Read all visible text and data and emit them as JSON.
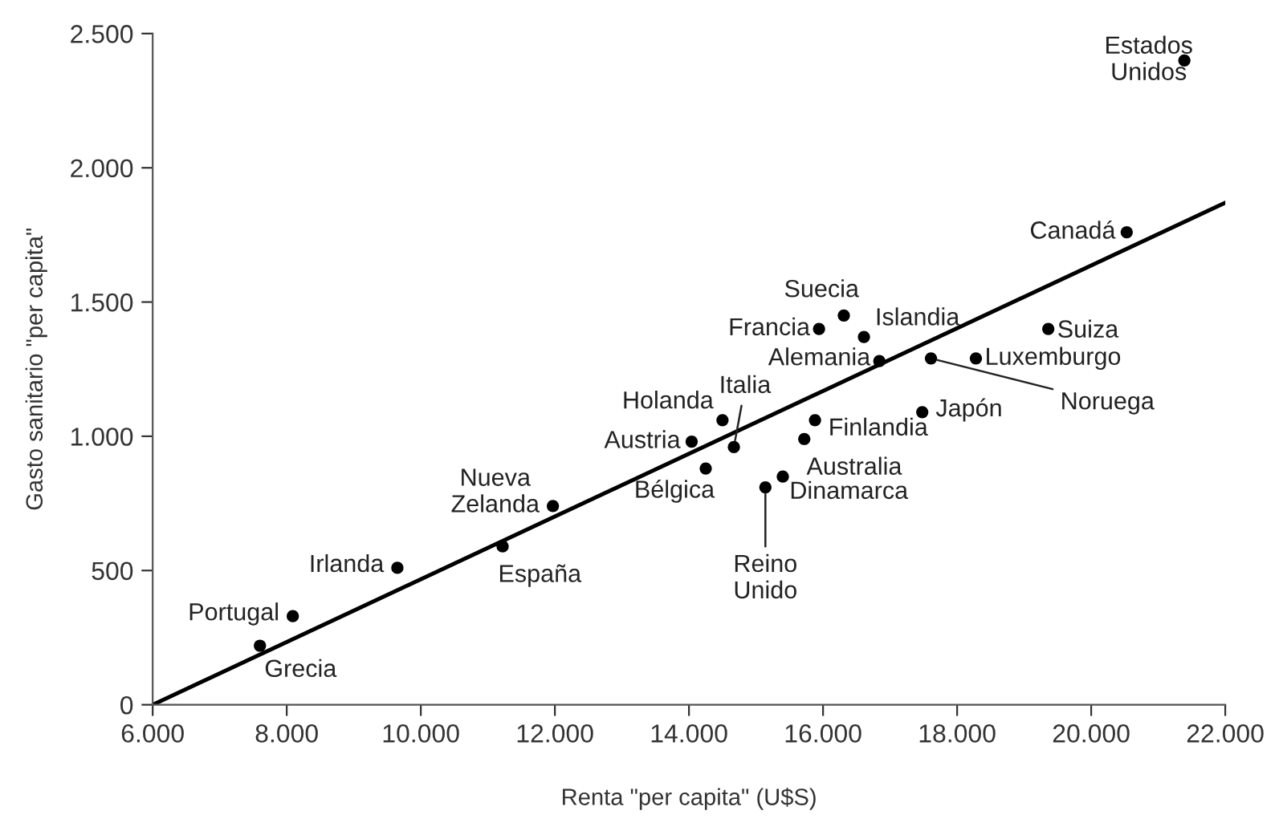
{
  "chart_data": {
    "type": "scatter",
    "xlabel": "Renta \"per capita\" (U$S)",
    "ylabel": "Gasto sanitario \"per capita\"",
    "xlim": [
      6000,
      22000
    ],
    "ylim": [
      0,
      2500
    ],
    "xticks": [
      {
        "value": 6000,
        "label": "6.000"
      },
      {
        "value": 8000,
        "label": "8.000"
      },
      {
        "value": 10000,
        "label": "10.000"
      },
      {
        "value": 12000,
        "label": "12.000"
      },
      {
        "value": 14000,
        "label": "14.000"
      },
      {
        "value": 16000,
        "label": "16.000"
      },
      {
        "value": 18000,
        "label": "18.000"
      },
      {
        "value": 20000,
        "label": "20.000"
      },
      {
        "value": 22000,
        "label": "22.000"
      }
    ],
    "yticks": [
      0,
      500,
      {
        "value": 1000,
        "label": "1.000"
      },
      {
        "value": 1500,
        "label": "1.500"
      },
      {
        "value": 2000,
        "label": "2.000"
      },
      {
        "value": 2500,
        "label": "2.500"
      }
    ],
    "grid": false,
    "series": [
      {
        "marker": "circle",
        "color": "#000000",
        "x": [
          7600,
          8090,
          9650,
          11220,
          11970,
          14040,
          14500,
          14670,
          14250,
          15140,
          15400,
          15720,
          15880,
          15940,
          16310,
          16610,
          16840,
          17610,
          17480,
          18280,
          19360,
          20530,
          21390
        ],
        "values": [
          220,
          330,
          510,
          590,
          740,
          980,
          1060,
          960,
          880,
          810,
          850,
          990,
          1060,
          1400,
          1450,
          1370,
          1280,
          1290,
          1090,
          1290,
          1400,
          1760,
          2400
        ]
      },
      {
        "type": "line",
        "color": "#000000",
        "line_style": "solid",
        "x": [
          6000,
          22000
        ],
        "values": [
          0,
          1870
        ]
      }
    ],
    "annotations": [
      {
        "text": "Grecia",
        "x": 7600,
        "y": 220
      },
      {
        "text": "Portugal",
        "x": 8090,
        "y": 330
      },
      {
        "text": "Irlanda",
        "x": 9650,
        "y": 510
      },
      {
        "text": "España",
        "x": 11220,
        "y": 590
      },
      {
        "text": "Nueva\nZelanda",
        "x": 11970,
        "y": 740
      },
      {
        "text": "Austria",
        "x": 14040,
        "y": 980
      },
      {
        "text": "Holanda",
        "x": 14500,
        "y": 1060
      },
      {
        "text": "Italia",
        "x": 14670,
        "y": 960
      },
      {
        "text": "Bélgica",
        "x": 14250,
        "y": 880
      },
      {
        "text": "Reino\nUnido",
        "x": 15140,
        "y": 810
      },
      {
        "text": "Dinamarca",
        "x": 15400,
        "y": 850
      },
      {
        "text": "Australia",
        "x": 15720,
        "y": 990
      },
      {
        "text": "Finlandia",
        "x": 15880,
        "y": 1060
      },
      {
        "text": "Francia",
        "x": 15940,
        "y": 1400
      },
      {
        "text": "Suecia",
        "x": 16310,
        "y": 1450
      },
      {
        "text": "Islandia",
        "x": 16610,
        "y": 1370
      },
      {
        "text": "Alemania",
        "x": 16840,
        "y": 1280
      },
      {
        "text": "Noruega",
        "x": 17610,
        "y": 1290
      },
      {
        "text": "Japón",
        "x": 17480,
        "y": 1090
      },
      {
        "text": "Luxemburgo",
        "x": 18280,
        "y": 1290
      },
      {
        "text": "Suiza",
        "x": 19360,
        "y": 1400
      },
      {
        "text": "Canadá",
        "x": 20530,
        "y": 1760
      },
      {
        "text": "Estados\nUnidos",
        "x": 21390,
        "y": 2400
      }
    ]
  }
}
